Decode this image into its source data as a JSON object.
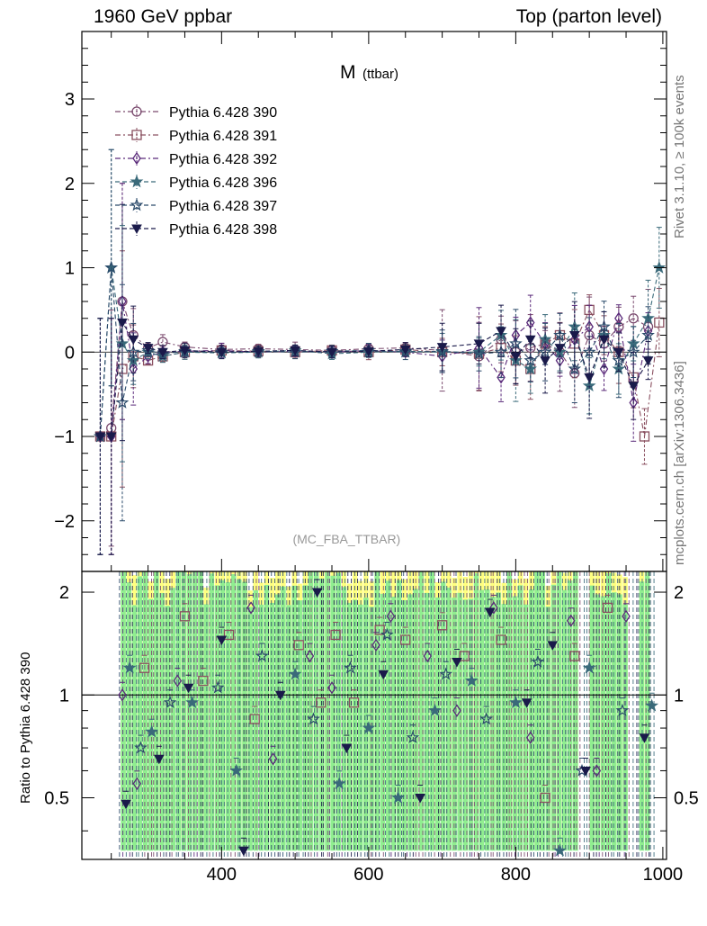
{
  "header": {
    "left": "1960 GeV ppbar",
    "right": "Top (parton level)"
  },
  "side_labels": {
    "rivet": "Rivet 3.1.10, ≥ 100k events",
    "mcplots": "mcplots.cern.ch [arXiv:1306.3436]"
  },
  "chart_data": [
    {
      "type": "scatter",
      "panel": "main",
      "title_main": "M",
      "title_sub": "(ttbar)",
      "analysis": "(MC_FBA_TTBAR)",
      "xlabel": "",
      "ylabel": "",
      "xlim": [
        210,
        1005
      ],
      "ylim": [
        -2.6,
        3.8
      ],
      "xticks": [
        "400",
        "600",
        "800",
        "1000"
      ],
      "yticks": [
        "−2",
        "−1",
        "0",
        "1",
        "2",
        "3"
      ],
      "ytick_values": [
        -2,
        -1,
        0,
        1,
        2,
        3
      ],
      "legend_position": "top-left",
      "series": [
        {
          "name": "Pythia 6.428 390",
          "color": "#7a4a6e",
          "marker": "circle-open",
          "line": "dashdot",
          "x": [
            235,
            250,
            265,
            280,
            300,
            320,
            350,
            400,
            450,
            500,
            550,
            600,
            650,
            700,
            750,
            780,
            800,
            820,
            840,
            860,
            880,
            900,
            920,
            940,
            960,
            980
          ],
          "y": [
            -1.0,
            -0.9,
            0.6,
            0.2,
            0.05,
            0.12,
            0.06,
            0.03,
            0.04,
            0.03,
            0.02,
            0.04,
            0.05,
            0.02,
            -0.05,
            0.15,
            0.0,
            0.05,
            0.1,
            0.0,
            -0.25,
            0.2,
            0.1,
            0.3,
            0.4,
            0.3
          ]
        },
        {
          "name": "Pythia 6.428 391",
          "color": "#8a5060",
          "marker": "square-open",
          "line": "dashdot",
          "x": [
            235,
            250,
            265,
            280,
            300,
            320,
            350,
            400,
            450,
            500,
            550,
            600,
            650,
            700,
            750,
            780,
            800,
            820,
            840,
            860,
            880,
            900,
            920,
            940,
            960,
            975,
            995
          ],
          "y": [
            -1.0,
            -1.0,
            -0.2,
            -0.05,
            -0.1,
            -0.05,
            0.0,
            0.02,
            0.01,
            0.0,
            0.02,
            0.0,
            0.03,
            0.0,
            -0.02,
            0.05,
            -0.1,
            -0.2,
            0.1,
            0.2,
            0.1,
            0.5,
            0.2,
            0.0,
            -0.3,
            -1.0,
            0.35
          ]
        },
        {
          "name": "Pythia 6.428 392",
          "color": "#5a2a7a",
          "marker": "diamond-open",
          "line": "dashdot",
          "x": [
            235,
            250,
            265,
            280,
            300,
            320,
            350,
            400,
            450,
            500,
            550,
            600,
            650,
            700,
            750,
            780,
            800,
            820,
            840,
            860,
            880,
            900,
            920,
            940,
            960,
            980
          ],
          "y": [
            -1.0,
            -1.0,
            0.6,
            -0.2,
            -0.05,
            0.0,
            0.01,
            0.02,
            0.0,
            0.01,
            0.0,
            0.02,
            0.0,
            -0.05,
            0.05,
            -0.3,
            0.2,
            0.35,
            0.1,
            -0.1,
            0.15,
            0.3,
            -0.2,
            0.4,
            -0.6,
            0.25
          ]
        },
        {
          "name": "Pythia 6.428 396",
          "color": "#3a6a7a",
          "marker": "star-filled",
          "line": "dashed",
          "x": [
            235,
            250,
            265,
            280,
            300,
            320,
            350,
            400,
            450,
            500,
            550,
            600,
            650,
            700,
            750,
            780,
            800,
            820,
            840,
            860,
            880,
            900,
            920,
            940,
            960,
            980,
            995
          ],
          "y": [
            -1.0,
            1.0,
            0.1,
            -0.1,
            0.0,
            -0.05,
            0.0,
            -0.01,
            0.0,
            0.02,
            -0.02,
            0.0,
            0.01,
            0.0,
            0.0,
            0.2,
            -0.1,
            -0.2,
            0.15,
            0.0,
            0.3,
            -0.4,
            0.2,
            -0.2,
            0.1,
            0.4,
            1.0
          ]
        },
        {
          "name": "Pythia 6.428 397",
          "color": "#2a4a6a",
          "marker": "star-open",
          "line": "dashed",
          "x": [
            235,
            250,
            265,
            280,
            300,
            320,
            350,
            400,
            450,
            500,
            550,
            600,
            650,
            700,
            750,
            780,
            800,
            820,
            840,
            860,
            880,
            900,
            920,
            940,
            960,
            980
          ],
          "y": [
            -1.0,
            1.0,
            -0.6,
            0.0,
            0.02,
            -0.02,
            0.01,
            0.0,
            0.01,
            0.0,
            0.01,
            0.02,
            0.0,
            0.01,
            -0.02,
            0.0,
            0.1,
            -0.1,
            0.0,
            0.2,
            -0.2,
            0.0,
            0.3,
            -0.1,
            0.0,
            0.2
          ]
        },
        {
          "name": "Pythia 6.428 398",
          "color": "#1a1a4a",
          "marker": "triangle-down-filled",
          "line": "dashed",
          "x": [
            235,
            250,
            265,
            280,
            300,
            320,
            350,
            400,
            450,
            500,
            550,
            600,
            650,
            700,
            750,
            780,
            800,
            820,
            840,
            860,
            880,
            900,
            920,
            940,
            960,
            980
          ],
          "y": [
            -1.0,
            -1.0,
            0.35,
            0.15,
            0.05,
            0.0,
            0.02,
            0.0,
            0.01,
            0.02,
            0.0,
            0.01,
            0.03,
            0.06,
            0.1,
            0.25,
            -0.05,
            0.15,
            -0.1,
            0.05,
            0.2,
            -0.3,
            0.15,
            0.0,
            -0.4,
            -0.1
          ]
        }
      ]
    },
    {
      "type": "scatter",
      "panel": "ratio",
      "xlabel": "",
      "ylabel": "Ratio to Pythia 6.428 390",
      "xlim": [
        210,
        1005
      ],
      "ylim": [
        0.33,
        2.3
      ],
      "xticks": [
        "400",
        "600",
        "800",
        "1000"
      ],
      "xtick_values": [
        400,
        600,
        800,
        1000
      ],
      "yticks": [
        "0.5",
        "1",
        "2"
      ],
      "ytick_values": [
        0.5,
        1,
        2
      ],
      "band_colors": {
        "outer": "#ffff80",
        "inner": "#90ee90"
      },
      "series": [
        {
          "name": "Pythia 6.428 391",
          "marker": "square-open",
          "color": "#8a5060",
          "x": [
            295,
            350,
            375,
            410,
            445,
            505,
            535,
            555,
            580,
            615,
            650,
            700,
            730,
            780,
            840,
            880,
            925
          ],
          "y": [
            1.2,
            1.7,
            1.1,
            1.5,
            0.85,
            1.4,
            0.95,
            1.5,
            0.95,
            1.55,
            1.45,
            1.6,
            1.3,
            1.45,
            0.5,
            1.3,
            1.8
          ]
        },
        {
          "name": "Pythia 6.428 392",
          "marker": "diamond-open",
          "color": "#5a2a7a",
          "x": [
            265,
            285,
            340,
            440,
            470,
            520,
            550,
            610,
            630,
            680,
            720,
            770,
            820,
            875,
            910,
            950
          ],
          "y": [
            1.0,
            0.55,
            1.1,
            1.8,
            0.65,
            1.3,
            1.05,
            1.4,
            1.7,
            1.3,
            0.9,
            1.8,
            0.75,
            1.65,
            0.6,
            1.7
          ]
        },
        {
          "name": "Pythia 6.428 396",
          "marker": "star-filled",
          "color": "#3a6a7a",
          "x": [
            275,
            305,
            360,
            420,
            500,
            560,
            600,
            640,
            690,
            740,
            800,
            860,
            900,
            985
          ],
          "y": [
            1.2,
            0.78,
            0.95,
            0.6,
            1.15,
            0.55,
            0.8,
            0.5,
            0.9,
            1.1,
            0.95,
            0.35,
            1.2,
            0.93
          ]
        },
        {
          "name": "Pythia 6.428 397",
          "marker": "star-open",
          "color": "#2a4a6a",
          "x": [
            290,
            330,
            395,
            455,
            525,
            575,
            625,
            660,
            705,
            760,
            830,
            890,
            945
          ],
          "y": [
            0.7,
            0.95,
            1.05,
            1.3,
            0.85,
            1.2,
            1.5,
            0.75,
            1.15,
            0.85,
            1.25,
            0.6,
            0.9
          ]
        },
        {
          "name": "Pythia 6.428 398",
          "marker": "triangle-down-filled",
          "color": "#1a1a4a",
          "x": [
            270,
            315,
            355,
            400,
            430,
            480,
            530,
            570,
            620,
            670,
            720,
            765,
            815,
            850,
            895,
            975
          ],
          "y": [
            0.48,
            0.65,
            1.05,
            1.45,
            0.35,
            1.0,
            2.0,
            0.7,
            1.15,
            0.5,
            1.25,
            1.75,
            0.95,
            1.4,
            0.6,
            0.75
          ]
        }
      ]
    }
  ]
}
